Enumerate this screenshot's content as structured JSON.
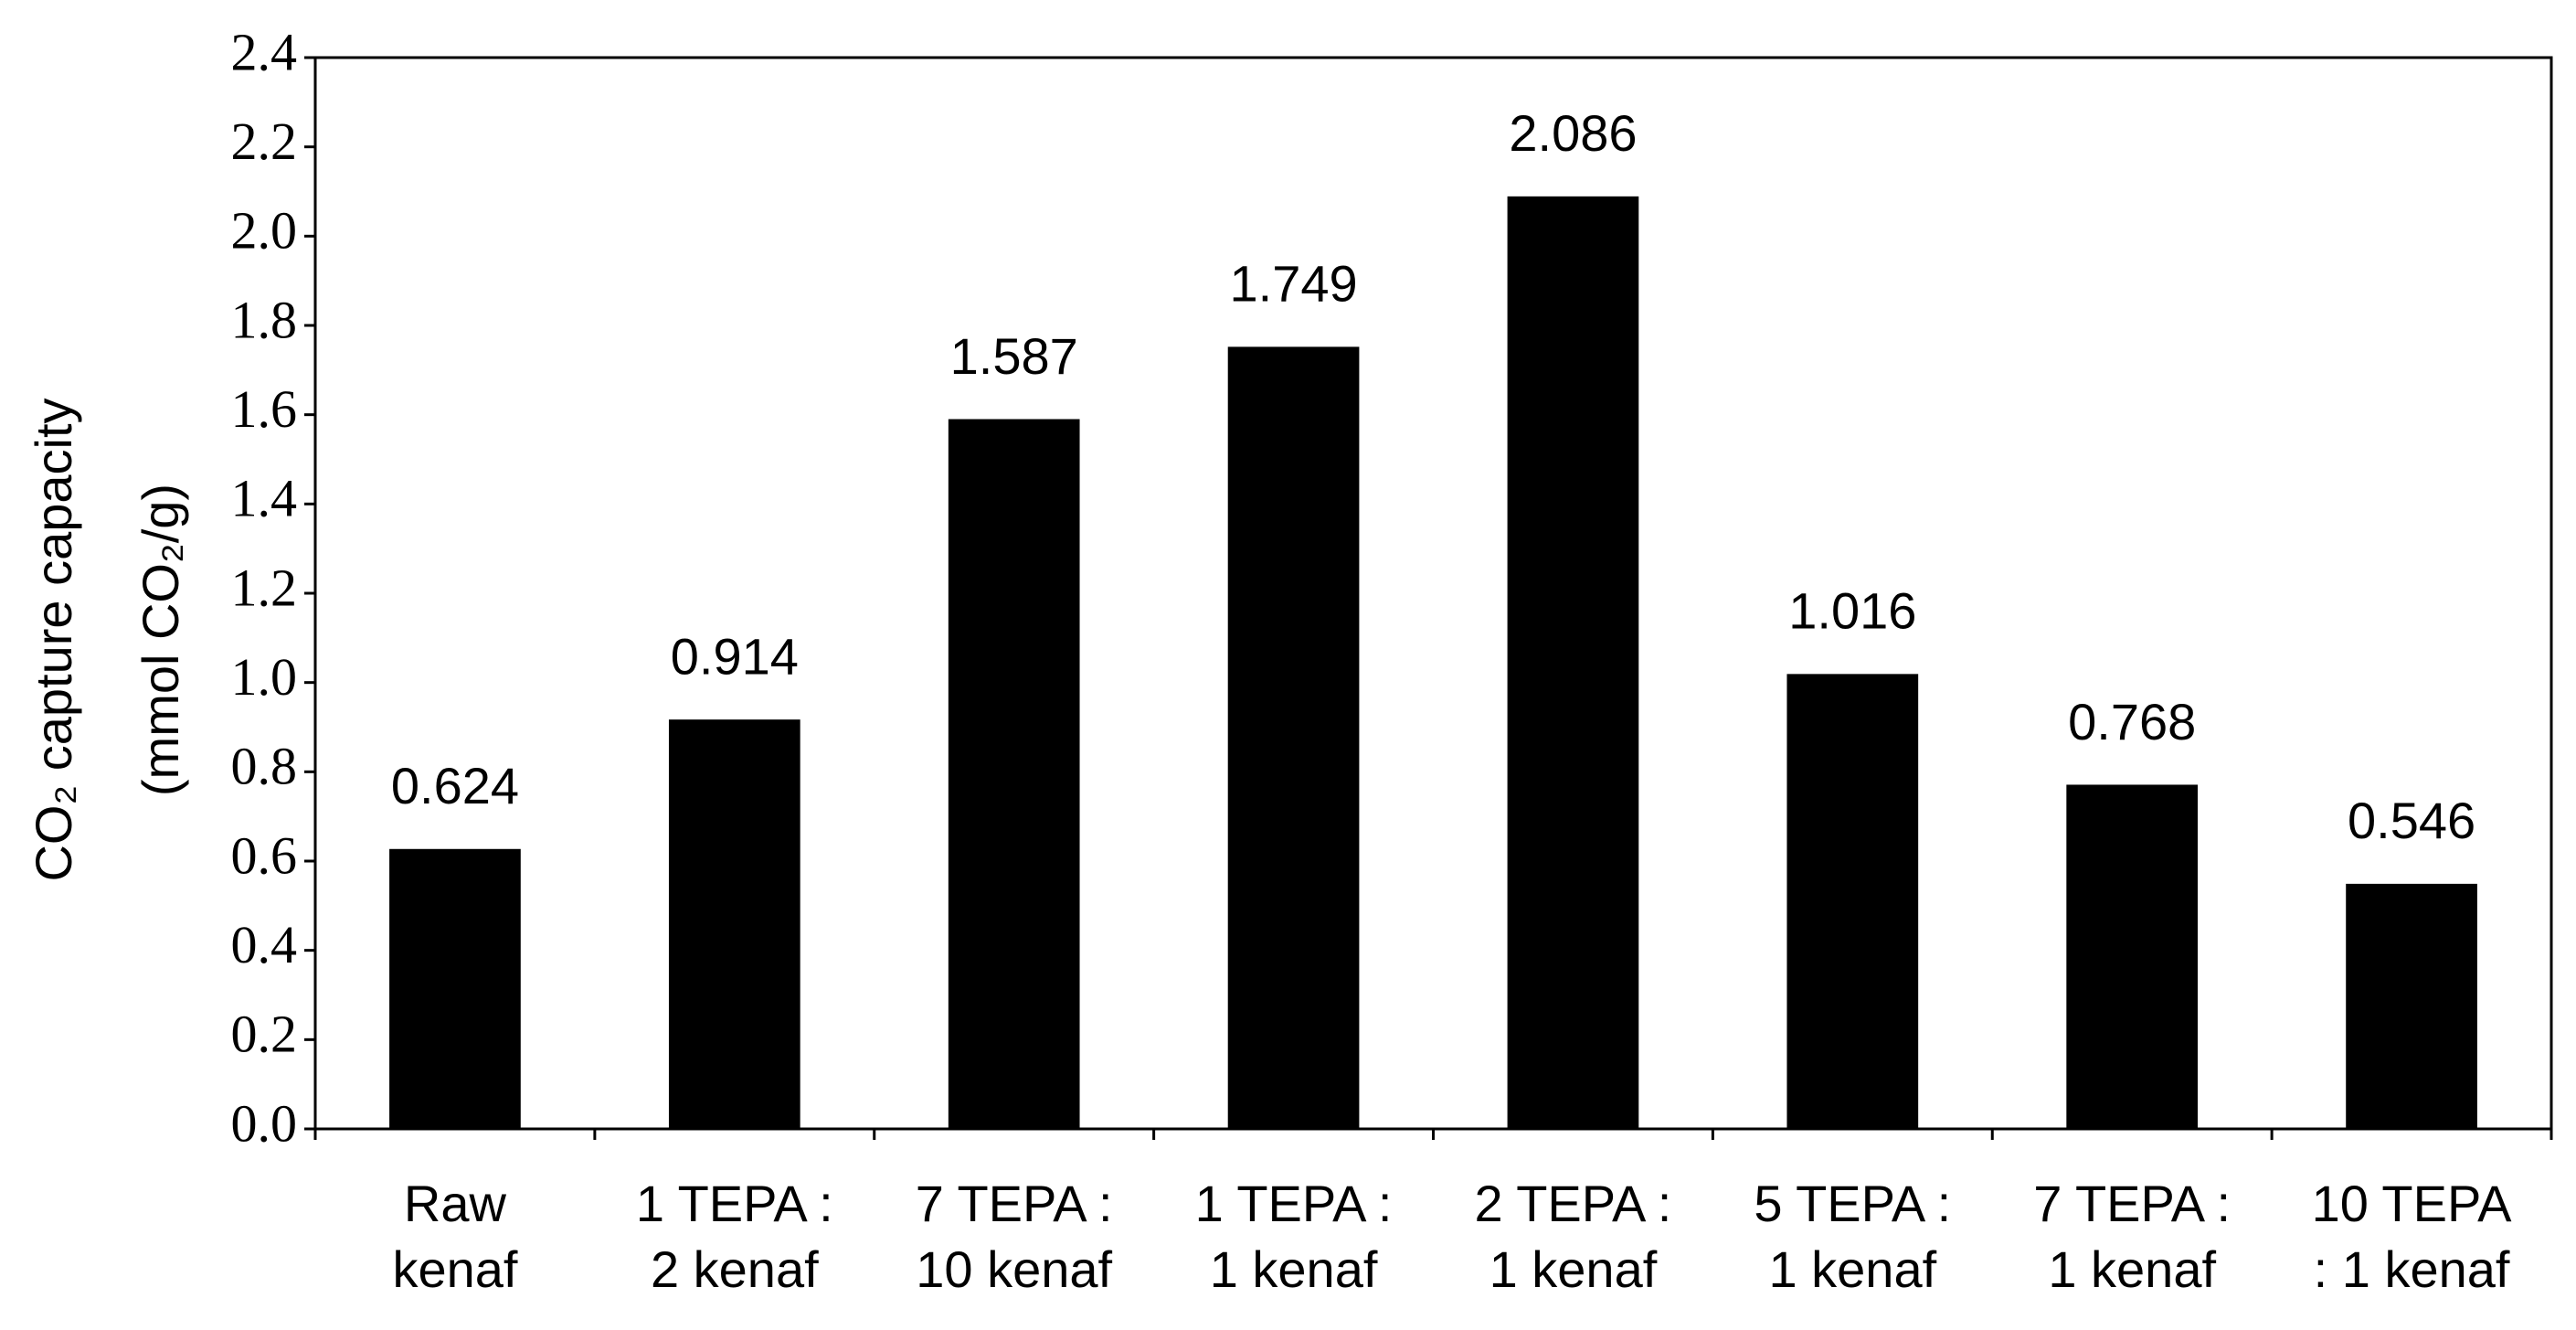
{
  "chart_data": {
    "type": "bar",
    "ylabel": [
      "CO₂ capture capacity",
      "(mmol CO₂/g)"
    ],
    "categories": [
      [
        "Raw",
        "kenaf"
      ],
      [
        "1 TEPA :",
        "2 kenaf"
      ],
      [
        "7 TEPA :",
        "10 kenaf"
      ],
      [
        "1 TEPA :",
        "1 kenaf"
      ],
      [
        "2 TEPA :",
        "1 kenaf"
      ],
      [
        "5 TEPA :",
        "1 kenaf"
      ],
      [
        "7 TEPA :",
        "1 kenaf"
      ],
      [
        "10 TEPA",
        ": 1 kenaf"
      ]
    ],
    "values": [
      0.624,
      0.914,
      1.587,
      1.749,
      2.086,
      1.016,
      0.768,
      0.546
    ],
    "color": "#000000",
    "ylim": [
      0,
      2.4
    ],
    "yticks": [
      {
        "value": 0,
        "label": "0.0"
      },
      0.2,
      0.4,
      0.6,
      0.8,
      {
        "value": 1,
        "label": "1.0"
      },
      1.2,
      1.4,
      1.6,
      1.8,
      {
        "value": 2,
        "label": "2.0"
      },
      2.2,
      2.4
    ]
  }
}
